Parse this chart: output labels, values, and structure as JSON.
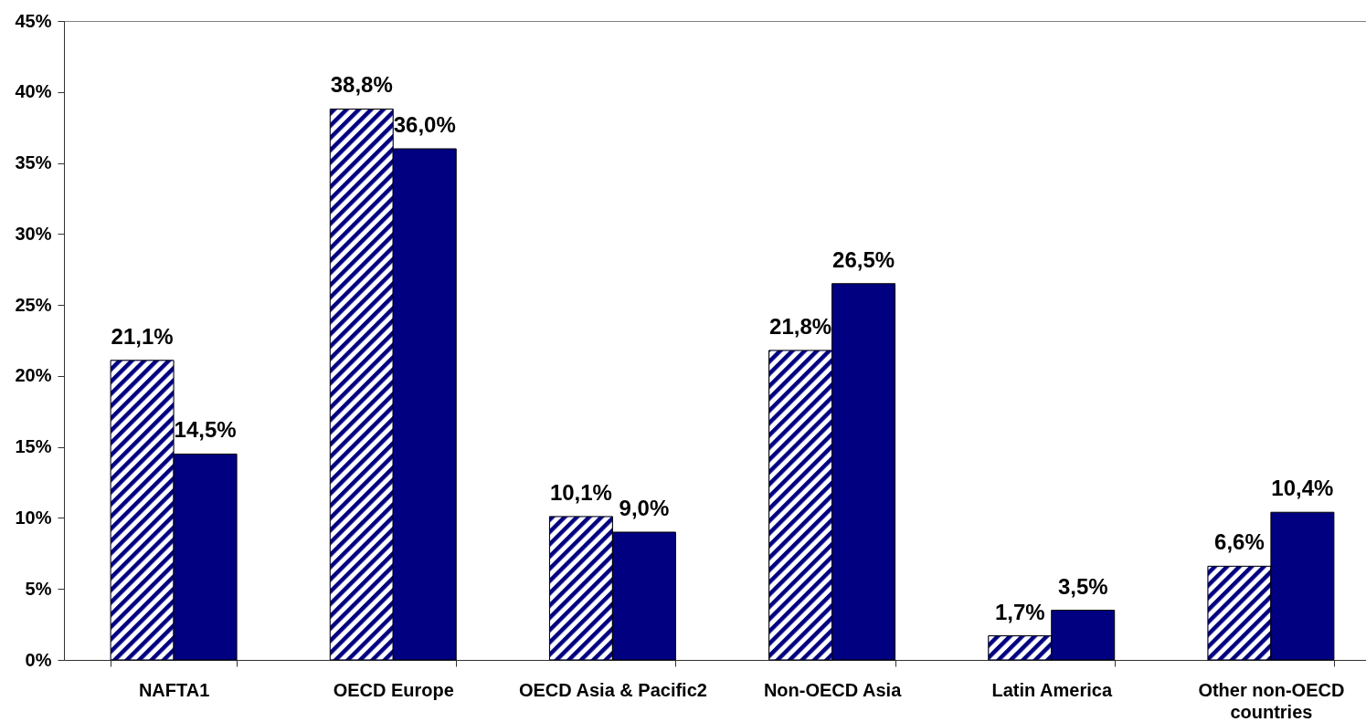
{
  "chart_data": {
    "type": "bar",
    "categories": [
      "NAFTA1",
      "OECD Europe",
      "OECD Asia & Pacific2",
      "Non-OECD Asia",
      "Latin America",
      "Other non-OECD countries"
    ],
    "series": [
      {
        "color": "#000080",
        "values": [
          21.1,
          38.8,
          10.1,
          21.8,
          1.7,
          6.6
        ],
        "value_labels": [
          "21,1%",
          "38,8%",
          "10,1%",
          "21,8%",
          "1,7%",
          "6,6%"
        ]
      },
      {
        "color": "#000080",
        "values": [
          14.5,
          36.0,
          9.0,
          26.5,
          3.5,
          10.4
        ],
        "value_labels": [
          "14,5%",
          "36,0%",
          "9,0%",
          "26,5%",
          "3,5%",
          "10,4%"
        ]
      }
    ],
    "ylim": [
      0,
      45
    ],
    "yticks": [
      {
        "value": 0,
        "label": "0%"
      },
      {
        "value": 5,
        "label": "5%"
      },
      {
        "value": 10,
        "label": "10%"
      },
      {
        "value": 15,
        "label": "15%"
      },
      {
        "value": 20,
        "label": "20%"
      },
      {
        "value": 25,
        "label": "25%"
      },
      {
        "value": 30,
        "label": "30%"
      },
      {
        "value": 35,
        "label": "35%"
      },
      {
        "value": 40,
        "label": "40%"
      },
      {
        "value": 45,
        "label": "45%"
      }
    ],
    "grid": false
  }
}
